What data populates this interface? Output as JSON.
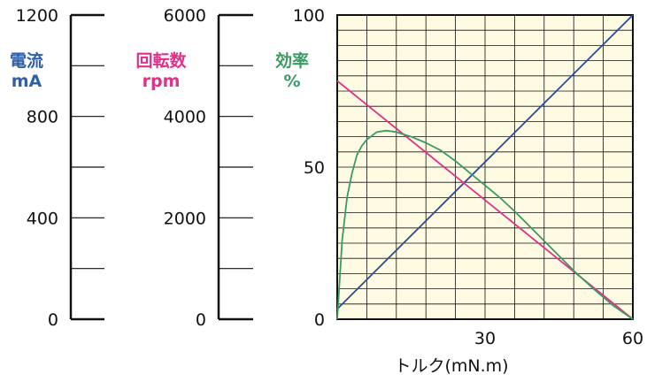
{
  "chart_data": {
    "type": "line",
    "xlabel": "トルク(mN.m)",
    "x_ticks": [
      "30",
      "60"
    ],
    "xlim": [
      0,
      60
    ],
    "grid": true,
    "plot_background": "#fefbe2",
    "grid_color": "#111111",
    "axes": [
      {
        "id": "current",
        "title": [
          "電流",
          "mA"
        ],
        "color": "#2e5fa8",
        "range": [
          0,
          1200
        ],
        "tick_labels": [
          "0",
          "400",
          "800",
          "1200"
        ]
      },
      {
        "id": "speed",
        "title": [
          "回転数",
          "rpm"
        ],
        "color": "#e0308a",
        "range": [
          0,
          6000
        ],
        "tick_labels": [
          "0",
          "2000",
          "4000",
          "6000"
        ]
      },
      {
        "id": "efficiency",
        "title": [
          "効率",
          "%"
        ],
        "color": "#3a9a64",
        "range": [
          0,
          100
        ],
        "tick_labels": [
          "0",
          "50",
          "100"
        ]
      }
    ],
    "series": [
      {
        "axis": "current",
        "color": "#2e4a9a",
        "x": [
          0,
          60
        ],
        "y": [
          40,
          1200
        ]
      },
      {
        "axis": "speed",
        "color": "#e0308a",
        "x": [
          0,
          60
        ],
        "y": [
          4700,
          0
        ]
      },
      {
        "axis": "efficiency",
        "color": "#3a9a64",
        "x": [
          0,
          1,
          2,
          3,
          4,
          5,
          6,
          8,
          10,
          12,
          15,
          18,
          21,
          24,
          27,
          30,
          33,
          36,
          40,
          44,
          48,
          52,
          56,
          60
        ],
        "y": [
          0,
          26,
          40,
          48,
          54,
          57,
          59,
          61.5,
          62,
          61.5,
          60,
          58,
          55.5,
          52,
          48,
          44,
          40,
          35.5,
          29,
          22.5,
          16,
          10,
          4.5,
          0
        ]
      }
    ]
  }
}
